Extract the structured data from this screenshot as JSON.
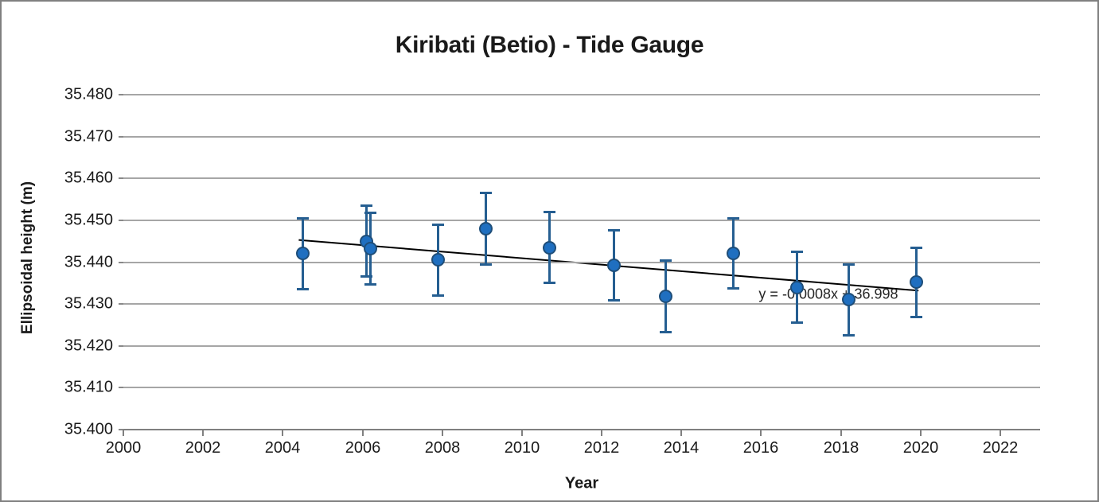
{
  "window": {
    "background": "#ffffff",
    "border_color": "#808080"
  },
  "colors": {
    "marker_fill": "#1f6fc0",
    "marker_border": "#1f4e79",
    "error_bar": "#255e91",
    "gridline": "#a6a6a6",
    "axis_line": "#808080",
    "trend_line": "#000000",
    "text": "#1a1a1a"
  },
  "chart_data": {
    "type": "scatter",
    "title": "Kiribati (Betio) - Tide Gauge",
    "xlabel": "Year",
    "ylabel": "Ellipsoidal height (m)",
    "xlim": [
      2000,
      2023
    ],
    "ylim": [
      35.4,
      35.48
    ],
    "grid": true,
    "legend": false,
    "x_ticks": [
      2000,
      2002,
      2004,
      2006,
      2008,
      2010,
      2012,
      2014,
      2016,
      2018,
      2020,
      2022
    ],
    "x_tick_labels": [
      "2000",
      "2002",
      "2004",
      "2006",
      "2008",
      "2010",
      "2012",
      "2014",
      "2016",
      "2018",
      "2020",
      "2022"
    ],
    "y_ticks": [
      35.48,
      35.47,
      35.46,
      35.45,
      35.44,
      35.43,
      35.42,
      35.41,
      35.4
    ],
    "y_tick_labels": [
      "35.480",
      "35.470",
      "35.460",
      "35.450",
      "35.440",
      "35.430",
      "35.420",
      "35.410",
      "35.400"
    ],
    "points": [
      {
        "x": 2004.5,
        "y": 35.442,
        "err": 0.0085
      },
      {
        "x": 2006.1,
        "y": 35.445,
        "err": 0.0085
      },
      {
        "x": 2006.2,
        "y": 35.4432,
        "err": 0.0085
      },
      {
        "x": 2007.9,
        "y": 35.4405,
        "err": 0.0085
      },
      {
        "x": 2009.1,
        "y": 35.448,
        "err": 0.0085
      },
      {
        "x": 2010.7,
        "y": 35.4435,
        "err": 0.0085
      },
      {
        "x": 2012.3,
        "y": 35.4392,
        "err": 0.0084
      },
      {
        "x": 2013.6,
        "y": 35.4318,
        "err": 0.0085
      },
      {
        "x": 2015.3,
        "y": 35.4421,
        "err": 0.0084
      },
      {
        "x": 2016.9,
        "y": 35.434,
        "err": 0.0084
      },
      {
        "x": 2018.2,
        "y": 35.431,
        "err": 0.0084
      },
      {
        "x": 2019.9,
        "y": 35.4352,
        "err": 0.0083
      }
    ],
    "trendline": {
      "x1": 2004.4,
      "y1": 35.4453,
      "x2": 2019.95,
      "y2": 35.4332,
      "equation": "y = -0.0008x + 36.998"
    }
  }
}
